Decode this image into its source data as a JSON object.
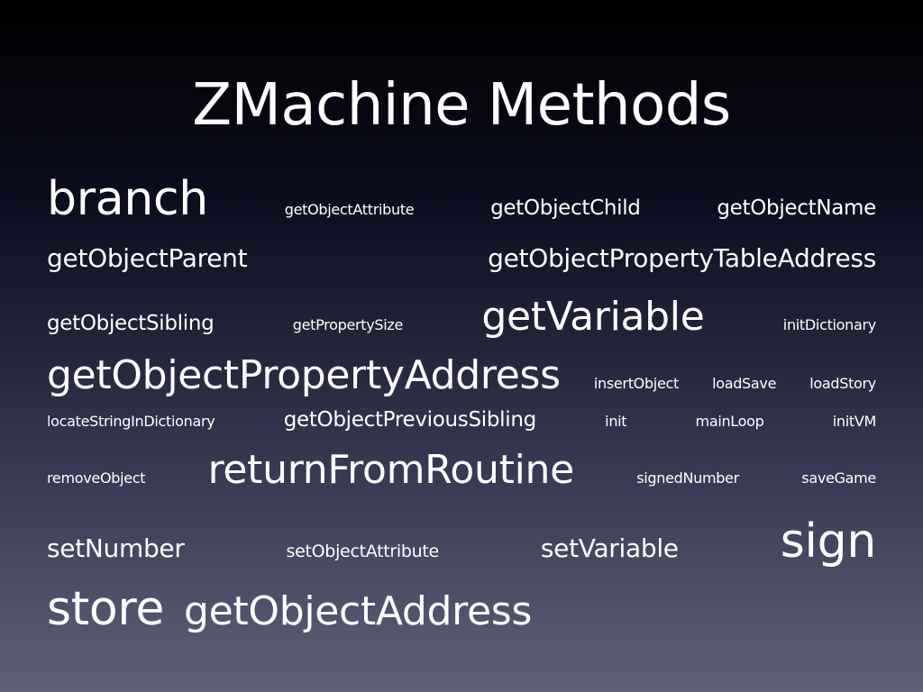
{
  "slide": {
    "title": "ZMachine Methods",
    "background_top": "#000000",
    "background_bottom": "#5f6078",
    "text_color": "#ffffff"
  },
  "cloud": {
    "rows": [
      [
        "branch",
        "getObjectAttribute",
        "getObjectChild",
        "getObjectName"
      ],
      [
        "getObjectParent",
        "getObjectPropertyTableAddress"
      ],
      [
        "getObjectSibling",
        "getPropertySize",
        "getVariable",
        "initDictionary"
      ],
      [
        "getObjectPropertyAddress",
        "insertObject",
        "loadSave",
        "loadStory"
      ],
      [
        "locateStringInDictionary",
        "getObjectPreviousSibling",
        "init",
        "mainLoop",
        "initVM"
      ],
      [
        "removeObject",
        "returnFromRoutine",
        "signedNumber",
        "saveGame"
      ],
      [
        "setNumber",
        "setObjectAttribute",
        "setVariable",
        "sign"
      ],
      [
        "store",
        "getObjectAddress"
      ]
    ]
  }
}
